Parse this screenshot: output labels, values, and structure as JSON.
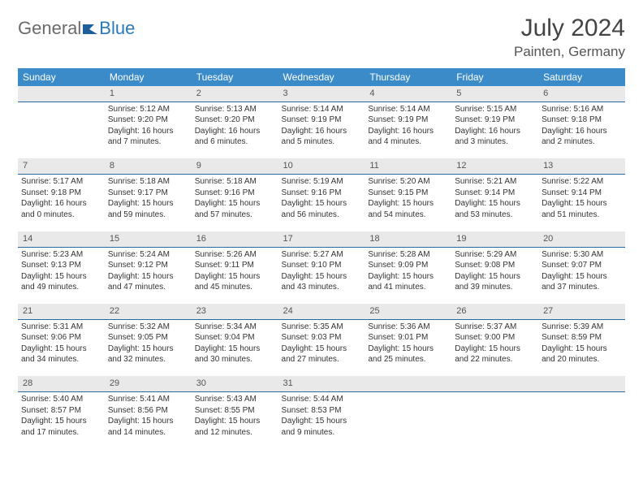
{
  "brand": {
    "part1": "General",
    "part2": "Blue"
  },
  "title": "July 2024",
  "location": "Painten, Germany",
  "colors": {
    "header_bg": "#3b8bc9",
    "daynum_bg": "#e9e9e9",
    "rule": "#2a6aa0"
  },
  "weekdays": [
    "Sunday",
    "Monday",
    "Tuesday",
    "Wednesday",
    "Thursday",
    "Friday",
    "Saturday"
  ],
  "weeks": [
    {
      "nums": [
        "",
        "1",
        "2",
        "3",
        "4",
        "5",
        "6"
      ],
      "cells": [
        null,
        {
          "sr": "5:12 AM",
          "ss": "9:20 PM",
          "dl": "16 hours and 7 minutes."
        },
        {
          "sr": "5:13 AM",
          "ss": "9:20 PM",
          "dl": "16 hours and 6 minutes."
        },
        {
          "sr": "5:14 AM",
          "ss": "9:19 PM",
          "dl": "16 hours and 5 minutes."
        },
        {
          "sr": "5:14 AM",
          "ss": "9:19 PM",
          "dl": "16 hours and 4 minutes."
        },
        {
          "sr": "5:15 AM",
          "ss": "9:19 PM",
          "dl": "16 hours and 3 minutes."
        },
        {
          "sr": "5:16 AM",
          "ss": "9:18 PM",
          "dl": "16 hours and 2 minutes."
        }
      ]
    },
    {
      "nums": [
        "7",
        "8",
        "9",
        "10",
        "11",
        "12",
        "13"
      ],
      "cells": [
        {
          "sr": "5:17 AM",
          "ss": "9:18 PM",
          "dl": "16 hours and 0 minutes."
        },
        {
          "sr": "5:18 AM",
          "ss": "9:17 PM",
          "dl": "15 hours and 59 minutes."
        },
        {
          "sr": "5:18 AM",
          "ss": "9:16 PM",
          "dl": "15 hours and 57 minutes."
        },
        {
          "sr": "5:19 AM",
          "ss": "9:16 PM",
          "dl": "15 hours and 56 minutes."
        },
        {
          "sr": "5:20 AM",
          "ss": "9:15 PM",
          "dl": "15 hours and 54 minutes."
        },
        {
          "sr": "5:21 AM",
          "ss": "9:14 PM",
          "dl": "15 hours and 53 minutes."
        },
        {
          "sr": "5:22 AM",
          "ss": "9:14 PM",
          "dl": "15 hours and 51 minutes."
        }
      ]
    },
    {
      "nums": [
        "14",
        "15",
        "16",
        "17",
        "18",
        "19",
        "20"
      ],
      "cells": [
        {
          "sr": "5:23 AM",
          "ss": "9:13 PM",
          "dl": "15 hours and 49 minutes."
        },
        {
          "sr": "5:24 AM",
          "ss": "9:12 PM",
          "dl": "15 hours and 47 minutes."
        },
        {
          "sr": "5:26 AM",
          "ss": "9:11 PM",
          "dl": "15 hours and 45 minutes."
        },
        {
          "sr": "5:27 AM",
          "ss": "9:10 PM",
          "dl": "15 hours and 43 minutes."
        },
        {
          "sr": "5:28 AM",
          "ss": "9:09 PM",
          "dl": "15 hours and 41 minutes."
        },
        {
          "sr": "5:29 AM",
          "ss": "9:08 PM",
          "dl": "15 hours and 39 minutes."
        },
        {
          "sr": "5:30 AM",
          "ss": "9:07 PM",
          "dl": "15 hours and 37 minutes."
        }
      ]
    },
    {
      "nums": [
        "21",
        "22",
        "23",
        "24",
        "25",
        "26",
        "27"
      ],
      "cells": [
        {
          "sr": "5:31 AM",
          "ss": "9:06 PM",
          "dl": "15 hours and 34 minutes."
        },
        {
          "sr": "5:32 AM",
          "ss": "9:05 PM",
          "dl": "15 hours and 32 minutes."
        },
        {
          "sr": "5:34 AM",
          "ss": "9:04 PM",
          "dl": "15 hours and 30 minutes."
        },
        {
          "sr": "5:35 AM",
          "ss": "9:03 PM",
          "dl": "15 hours and 27 minutes."
        },
        {
          "sr": "5:36 AM",
          "ss": "9:01 PM",
          "dl": "15 hours and 25 minutes."
        },
        {
          "sr": "5:37 AM",
          "ss": "9:00 PM",
          "dl": "15 hours and 22 minutes."
        },
        {
          "sr": "5:39 AM",
          "ss": "8:59 PM",
          "dl": "15 hours and 20 minutes."
        }
      ]
    },
    {
      "nums": [
        "28",
        "29",
        "30",
        "31",
        "",
        "",
        ""
      ],
      "cells": [
        {
          "sr": "5:40 AM",
          "ss": "8:57 PM",
          "dl": "15 hours and 17 minutes."
        },
        {
          "sr": "5:41 AM",
          "ss": "8:56 PM",
          "dl": "15 hours and 14 minutes."
        },
        {
          "sr": "5:43 AM",
          "ss": "8:55 PM",
          "dl": "15 hours and 12 minutes."
        },
        {
          "sr": "5:44 AM",
          "ss": "8:53 PM",
          "dl": "15 hours and 9 minutes."
        },
        null,
        null,
        null
      ]
    }
  ],
  "labels": {
    "sunrise": "Sunrise: ",
    "sunset": "Sunset: ",
    "daylight": "Daylight: "
  }
}
